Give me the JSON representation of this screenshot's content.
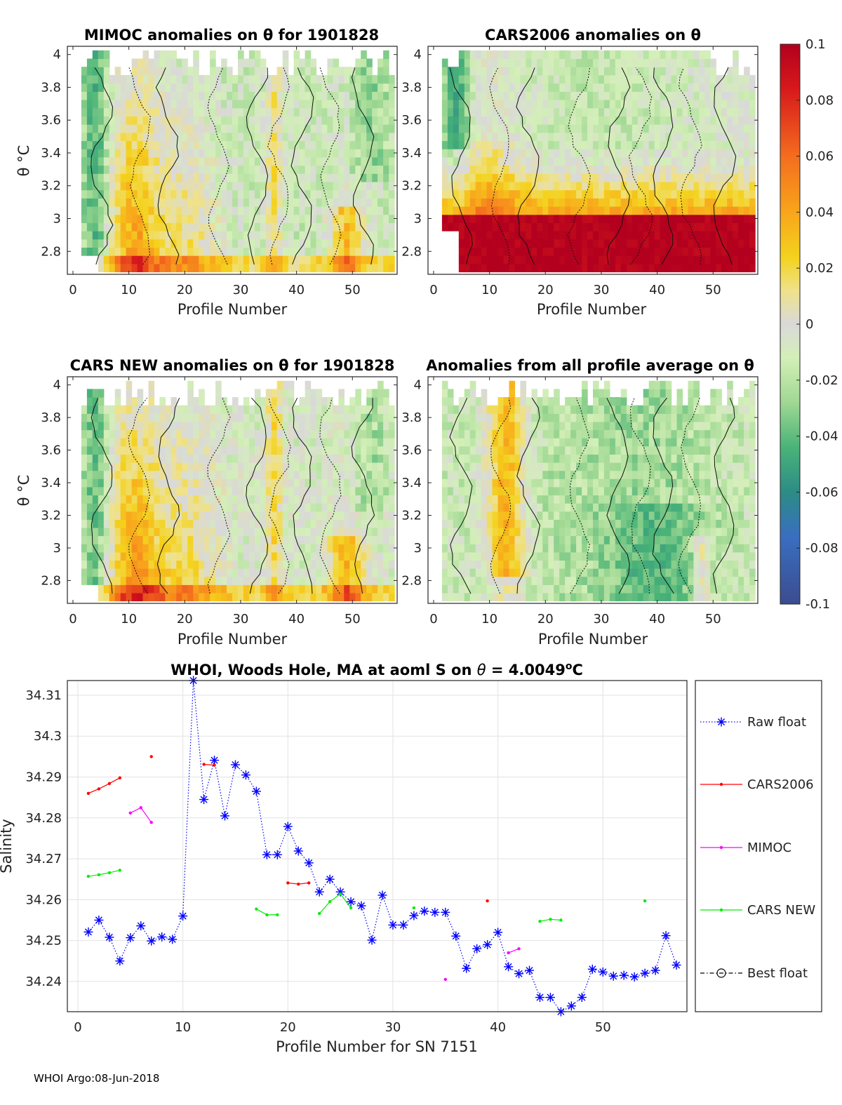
{
  "chart_data": [
    {
      "type": "heatmap",
      "title": "MIMOC anomalies on θ  for 1901828",
      "xlabel": "Profile Number",
      "ylabel": "θ °C",
      "xticks": [
        "0",
        "10",
        "20",
        "30",
        "40",
        "50"
      ],
      "yticks": [
        "4",
        "3.8",
        "3.6",
        "3.4",
        "3.2",
        "3",
        "2.8"
      ],
      "xlim": [
        -1,
        58
      ],
      "ylim": [
        2.66,
        4.05
      ],
      "pattern": "mimoc"
    },
    {
      "type": "heatmap",
      "title": "CARS2006 anomalies on θ",
      "xlabel": "Profile Number",
      "ylabel": "",
      "xticks": [
        "0",
        "10",
        "20",
        "30",
        "40",
        "50"
      ],
      "yticks": [
        "4",
        "3.8",
        "3.6",
        "3.4",
        "3.2",
        "3",
        "2.8"
      ],
      "xlim": [
        -1,
        58
      ],
      "ylim": [
        2.66,
        4.05
      ],
      "pattern": "cars2006"
    },
    {
      "type": "heatmap",
      "title": "CARS NEW anomalies on θ for 1901828",
      "xlabel": "Profile Number",
      "ylabel": "θ °C",
      "xticks": [
        "0",
        "10",
        "20",
        "30",
        "40",
        "50"
      ],
      "yticks": [
        "4",
        "3.8",
        "3.6",
        "3.4",
        "3.2",
        "3",
        "2.8"
      ],
      "xlim": [
        -1,
        58
      ],
      "ylim": [
        2.66,
        4.05
      ],
      "pattern": "carsnew"
    },
    {
      "type": "heatmap",
      "title": "Anomalies from all profile average on θ",
      "xlabel": "Profile Number",
      "ylabel": "",
      "xticks": [
        "0",
        "10",
        "20",
        "30",
        "40",
        "50"
      ],
      "yticks": [
        "4",
        "3.8",
        "3.6",
        "3.4",
        "3.2",
        "3",
        "2.8"
      ],
      "xlim": [
        -1,
        58
      ],
      "ylim": [
        2.66,
        4.05
      ],
      "pattern": "average"
    },
    {
      "type": "line",
      "title_prefix": "WHOI, Woods Hole, MA at aoml S on ",
      "title_theta": "θ",
      "title_value": " = 4.0049",
      "title_unit_sup": "o",
      "title_unit": "C",
      "xlabel": "Profile Number for SN 7151",
      "ylabel": "Salinity",
      "xlim": [
        -1,
        58
      ],
      "ylim": [
        34.2326,
        34.3136
      ],
      "xticks": [
        0,
        10,
        20,
        30,
        40,
        50
      ],
      "yticks": [
        34.24,
        34.25,
        34.26,
        34.27,
        34.28,
        34.29,
        34.3,
        34.31
      ],
      "series": [
        {
          "name": "Raw float",
          "color": "#0000ff",
          "marker": "asterisk",
          "linestyle": "dotted",
          "x": [
            1,
            2,
            3,
            4,
            5,
            6,
            7,
            8,
            9,
            10,
            11,
            12,
            13,
            14,
            15,
            16,
            17,
            18,
            19,
            20,
            21,
            22,
            23,
            24,
            25,
            26,
            27,
            28,
            29,
            30,
            31,
            32,
            33,
            34,
            35,
            36,
            37,
            38,
            39,
            40,
            41,
            42,
            43,
            44,
            45,
            46,
            47,
            48,
            49,
            50,
            51,
            52,
            53,
            54,
            55,
            56,
            57
          ],
          "y": [
            34.2521,
            34.255,
            34.2508,
            34.245,
            34.2507,
            34.2536,
            34.2499,
            34.2509,
            34.2503,
            34.256,
            34.3136,
            34.2845,
            34.2941,
            34.2805,
            34.293,
            34.2905,
            34.2865,
            34.271,
            34.271,
            34.2779,
            34.2719,
            34.269,
            34.2619,
            34.265,
            34.2619,
            34.2595,
            34.2585,
            34.2501,
            34.2611,
            34.2538,
            34.2538,
            34.2561,
            34.2572,
            34.2569,
            34.2569,
            34.2511,
            34.2432,
            34.248,
            34.249,
            34.252,
            34.2436,
            34.2419,
            34.2427,
            34.2361,
            34.2361,
            34.2326,
            34.234,
            34.2361,
            34.243,
            34.2423,
            34.2413,
            34.2415,
            34.2411,
            34.242,
            34.2427,
            34.2512,
            34.244
          ]
        },
        {
          "name": "CARS2006",
          "color": "#ff0000",
          "marker": "dot",
          "linestyle": "solid",
          "segments": [
            {
              "x": [
                1,
                2,
                3,
                4
              ],
              "y": [
                34.286,
                34.2871,
                34.2884,
                34.2898
              ]
            },
            {
              "x": [
                7
              ],
              "y": [
                34.295
              ]
            },
            {
              "x": [
                12,
                13
              ],
              "y": [
                34.2931,
                34.2929
              ]
            },
            {
              "x": [
                20,
                21,
                22
              ],
              "y": [
                34.2641,
                34.2638,
                34.2641
              ]
            },
            {
              "x": [
                39
              ],
              "y": [
                34.2597
              ]
            }
          ]
        },
        {
          "name": "MIMOC",
          "color": "#ff00ff",
          "marker": "dot",
          "linestyle": "solid",
          "segments": [
            {
              "x": [
                5,
                6,
                7
              ],
              "y": [
                34.2812,
                34.2825,
                34.2789
              ]
            },
            {
              "x": [
                35
              ],
              "y": [
                34.2405
              ]
            },
            {
              "x": [
                41,
                42
              ],
              "y": [
                34.247,
                34.248
              ]
            }
          ]
        },
        {
          "name": "CARS NEW",
          "color": "#00ee00",
          "marker": "dot",
          "linestyle": "solid",
          "segments": [
            {
              "x": [
                1,
                2,
                3,
                4
              ],
              "y": [
                34.2657,
                34.2661,
                34.2666,
                34.2672
              ]
            },
            {
              "x": [
                17,
                18,
                19
              ],
              "y": [
                34.2577,
                34.2563,
                34.2563
              ]
            },
            {
              "x": [
                23,
                24,
                25,
                26
              ],
              "y": [
                34.2566,
                34.2595,
                34.2614,
                34.258
              ]
            },
            {
              "x": [
                32
              ],
              "y": [
                34.258
              ]
            },
            {
              "x": [
                44,
                45,
                46
              ],
              "y": [
                34.2547,
                34.2552,
                34.255
              ]
            },
            {
              "x": [
                54
              ],
              "y": [
                34.2597
              ]
            }
          ]
        },
        {
          "name": "Best float",
          "color": "#000000",
          "marker": "circle",
          "linestyle": "dashdot",
          "segments": []
        }
      ]
    }
  ],
  "colorbar": {
    "labels": [
      "0.1",
      "0.08",
      "0.06",
      "0.04",
      "0.02",
      "0",
      "-0.02",
      "-0.04",
      "-0.06",
      "-0.08",
      "-0.1"
    ],
    "range": [
      -0.1,
      0.1
    ]
  },
  "footer": "WHOI Argo:08-Jun-2018"
}
